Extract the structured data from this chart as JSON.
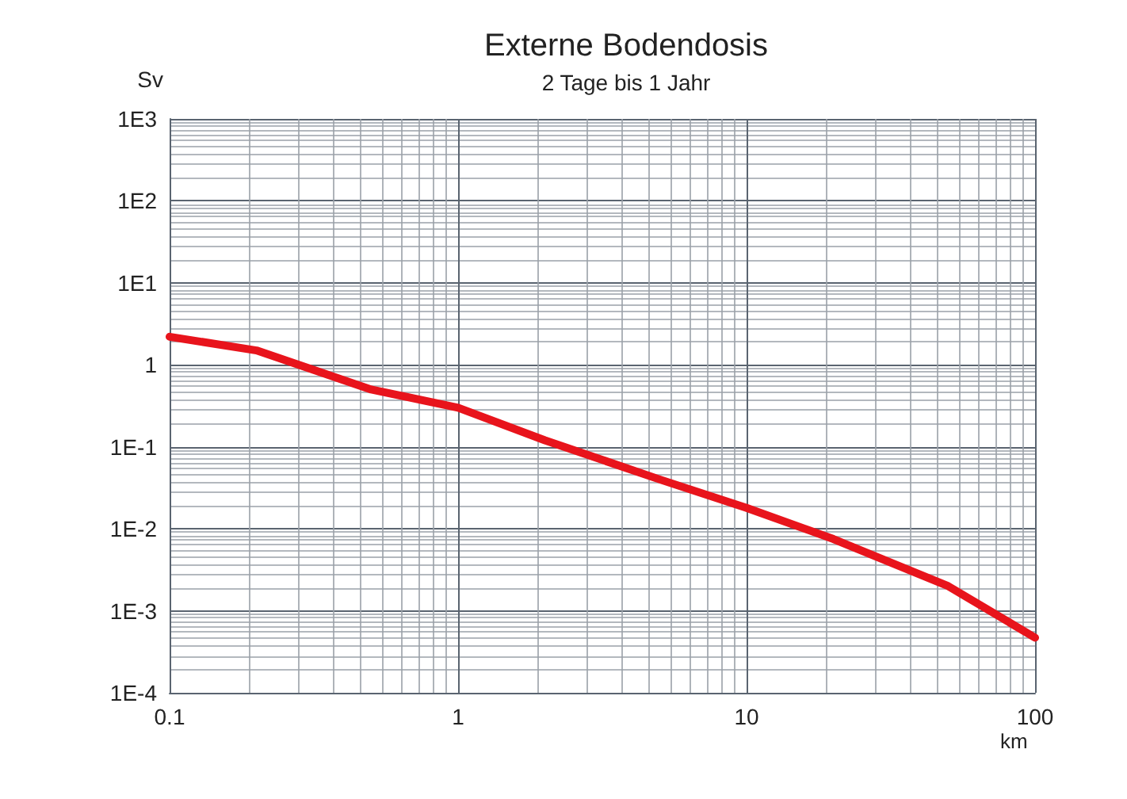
{
  "chart_data": {
    "type": "line",
    "title": "Externe Bodendosis",
    "subtitle": "2 Tage bis 1 Jahr",
    "xlabel": "km",
    "ylabel": "Sv",
    "log": "xy",
    "grid": true,
    "marker": "none",
    "line_style": "solid",
    "xlim": [
      0.1,
      100
    ],
    "xticks": [
      0.1,
      1,
      10,
      100
    ],
    "ylim": [
      0.0001,
      1000
    ],
    "yticks": [
      {
        "value": 0.0001,
        "label": "1E-4"
      },
      {
        "value": 0.001,
        "label": "1E-3"
      },
      {
        "value": 0.01,
        "label": "1E-2"
      },
      {
        "value": 0.1,
        "label": "1E-1"
      },
      {
        "value": 1,
        "label": "1"
      },
      {
        "value": 10,
        "label": "1E1"
      },
      {
        "value": 100,
        "label": "1E2"
      },
      {
        "value": 1000,
        "label": "1E3"
      }
    ],
    "series": [
      {
        "color": "#e8141c",
        "x": [
          0.1,
          0.2,
          0.5,
          1,
          2,
          5,
          10,
          20,
          50,
          100
        ],
        "values": [
          2.2,
          1.5,
          0.5,
          0.3,
          0.12,
          0.04,
          0.018,
          0.0075,
          0.002,
          0.00047
        ]
      }
    ]
  }
}
